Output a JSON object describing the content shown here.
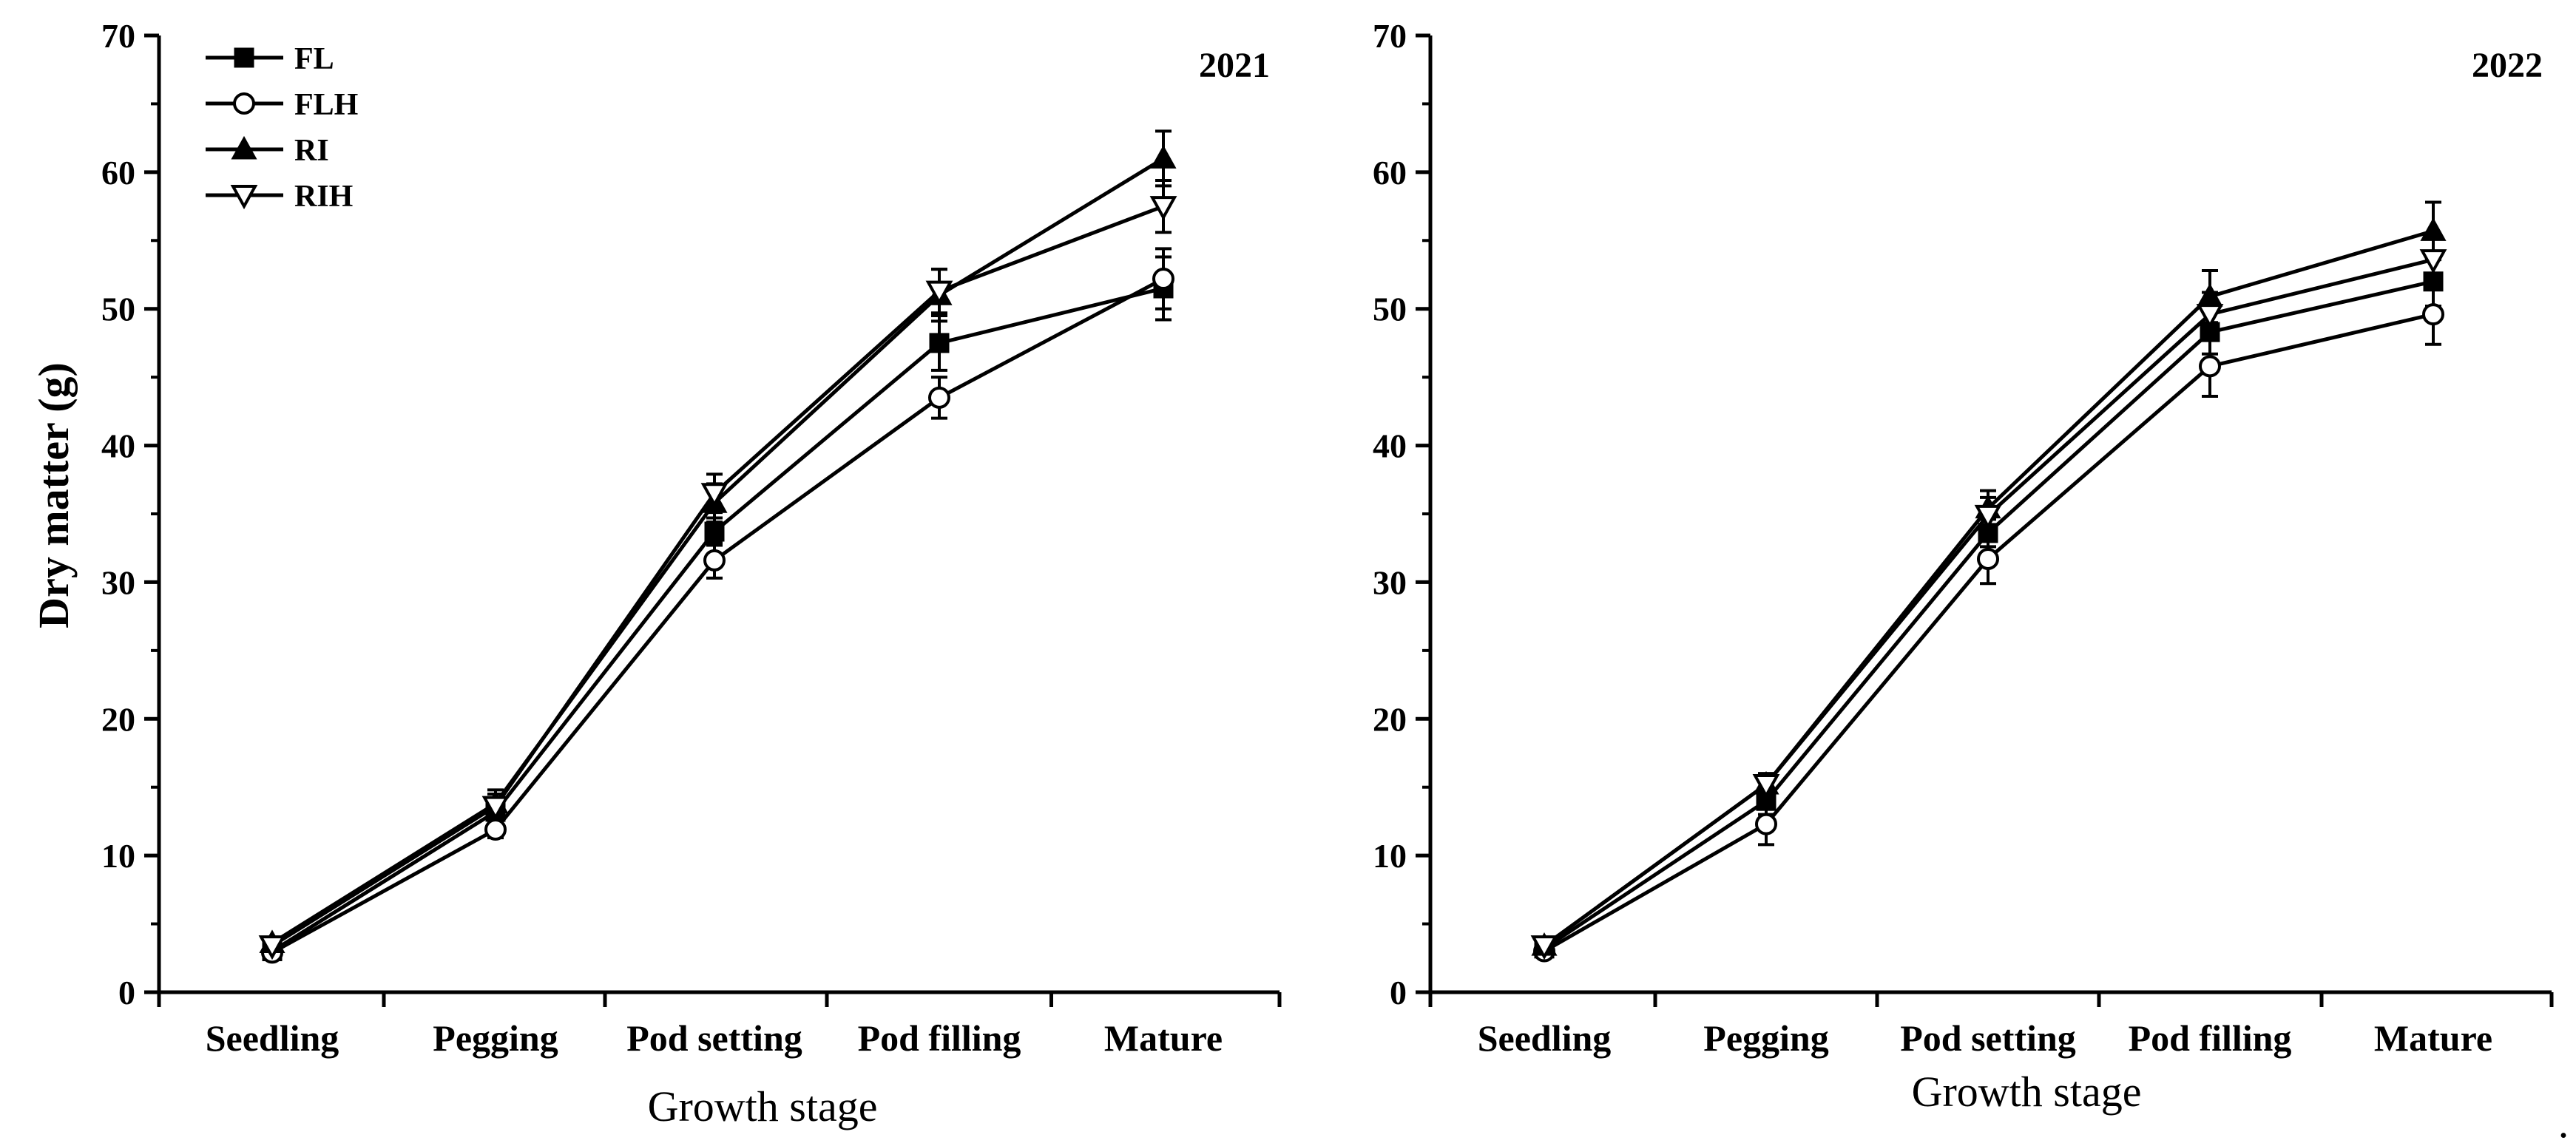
{
  "chart_data": [
    {
      "type": "line",
      "year_label": "2021",
      "xlabel": "Growth stage",
      "ylabel": "Dry matter (g)",
      "categories": [
        "Seedling",
        "Pegging",
        "Pod setting",
        "Pod filling",
        "Mature"
      ],
      "ylim": [
        0,
        70
      ],
      "yticks": [
        0,
        10,
        20,
        30,
        40,
        50,
        60,
        70
      ],
      "legend_position": "top-left",
      "series": [
        {
          "name": "FL",
          "marker": "square-filled",
          "values": [
            3.0,
            13.2,
            33.7,
            47.5,
            51.5
          ],
          "errors": [
            0.3,
            0.8,
            1.0,
            2.0,
            2.3
          ]
        },
        {
          "name": "FLH",
          "marker": "circle-open",
          "values": [
            2.9,
            11.9,
            31.6,
            43.5,
            52.2
          ],
          "errors": [
            0.3,
            0.6,
            1.3,
            1.5,
            2.2
          ]
        },
        {
          "name": "RI",
          "marker": "triangle-filled",
          "values": [
            3.6,
            13.8,
            35.8,
            51.0,
            61.0
          ],
          "errors": [
            0.4,
            1.0,
            1.4,
            1.9,
            2.0
          ]
        },
        {
          "name": "RIH",
          "marker": "triangle-down-open",
          "values": [
            3.4,
            13.6,
            36.5,
            51.3,
            57.5
          ],
          "errors": [
            0.4,
            0.9,
            1.4,
            1.6,
            1.9
          ]
        }
      ]
    },
    {
      "type": "line",
      "year_label": "2022",
      "xlabel": "Growth stage",
      "ylabel": "",
      "categories": [
        "Seedling",
        "Pegging",
        "Pod setting",
        "Pod filling",
        "Mature"
      ],
      "ylim": [
        0,
        70
      ],
      "yticks": [
        0,
        10,
        20,
        30,
        40,
        50,
        60,
        70
      ],
      "series": [
        {
          "name": "FL",
          "marker": "square-filled",
          "values": [
            3.2,
            14.0,
            33.6,
            48.3,
            52.0
          ],
          "errors": [
            0.3,
            1.0,
            1.0,
            1.6,
            1.8
          ]
        },
        {
          "name": "FLH",
          "marker": "circle-open",
          "values": [
            3.0,
            12.3,
            31.7,
            45.8,
            49.6
          ],
          "errors": [
            0.3,
            1.5,
            1.8,
            2.2,
            2.2
          ]
        },
        {
          "name": "RI",
          "marker": "triangle-filled",
          "values": [
            3.4,
            15.2,
            35.4,
            50.9,
            55.7
          ],
          "errors": [
            0.3,
            0.8,
            1.3,
            1.9,
            2.1
          ]
        },
        {
          "name": "RIH",
          "marker": "triangle-down-open",
          "values": [
            3.4,
            15.2,
            34.9,
            49.6,
            53.6
          ],
          "errors": [
            0.3,
            0.8,
            1.3,
            1.6,
            1.9
          ]
        }
      ]
    }
  ],
  "footnote": "."
}
